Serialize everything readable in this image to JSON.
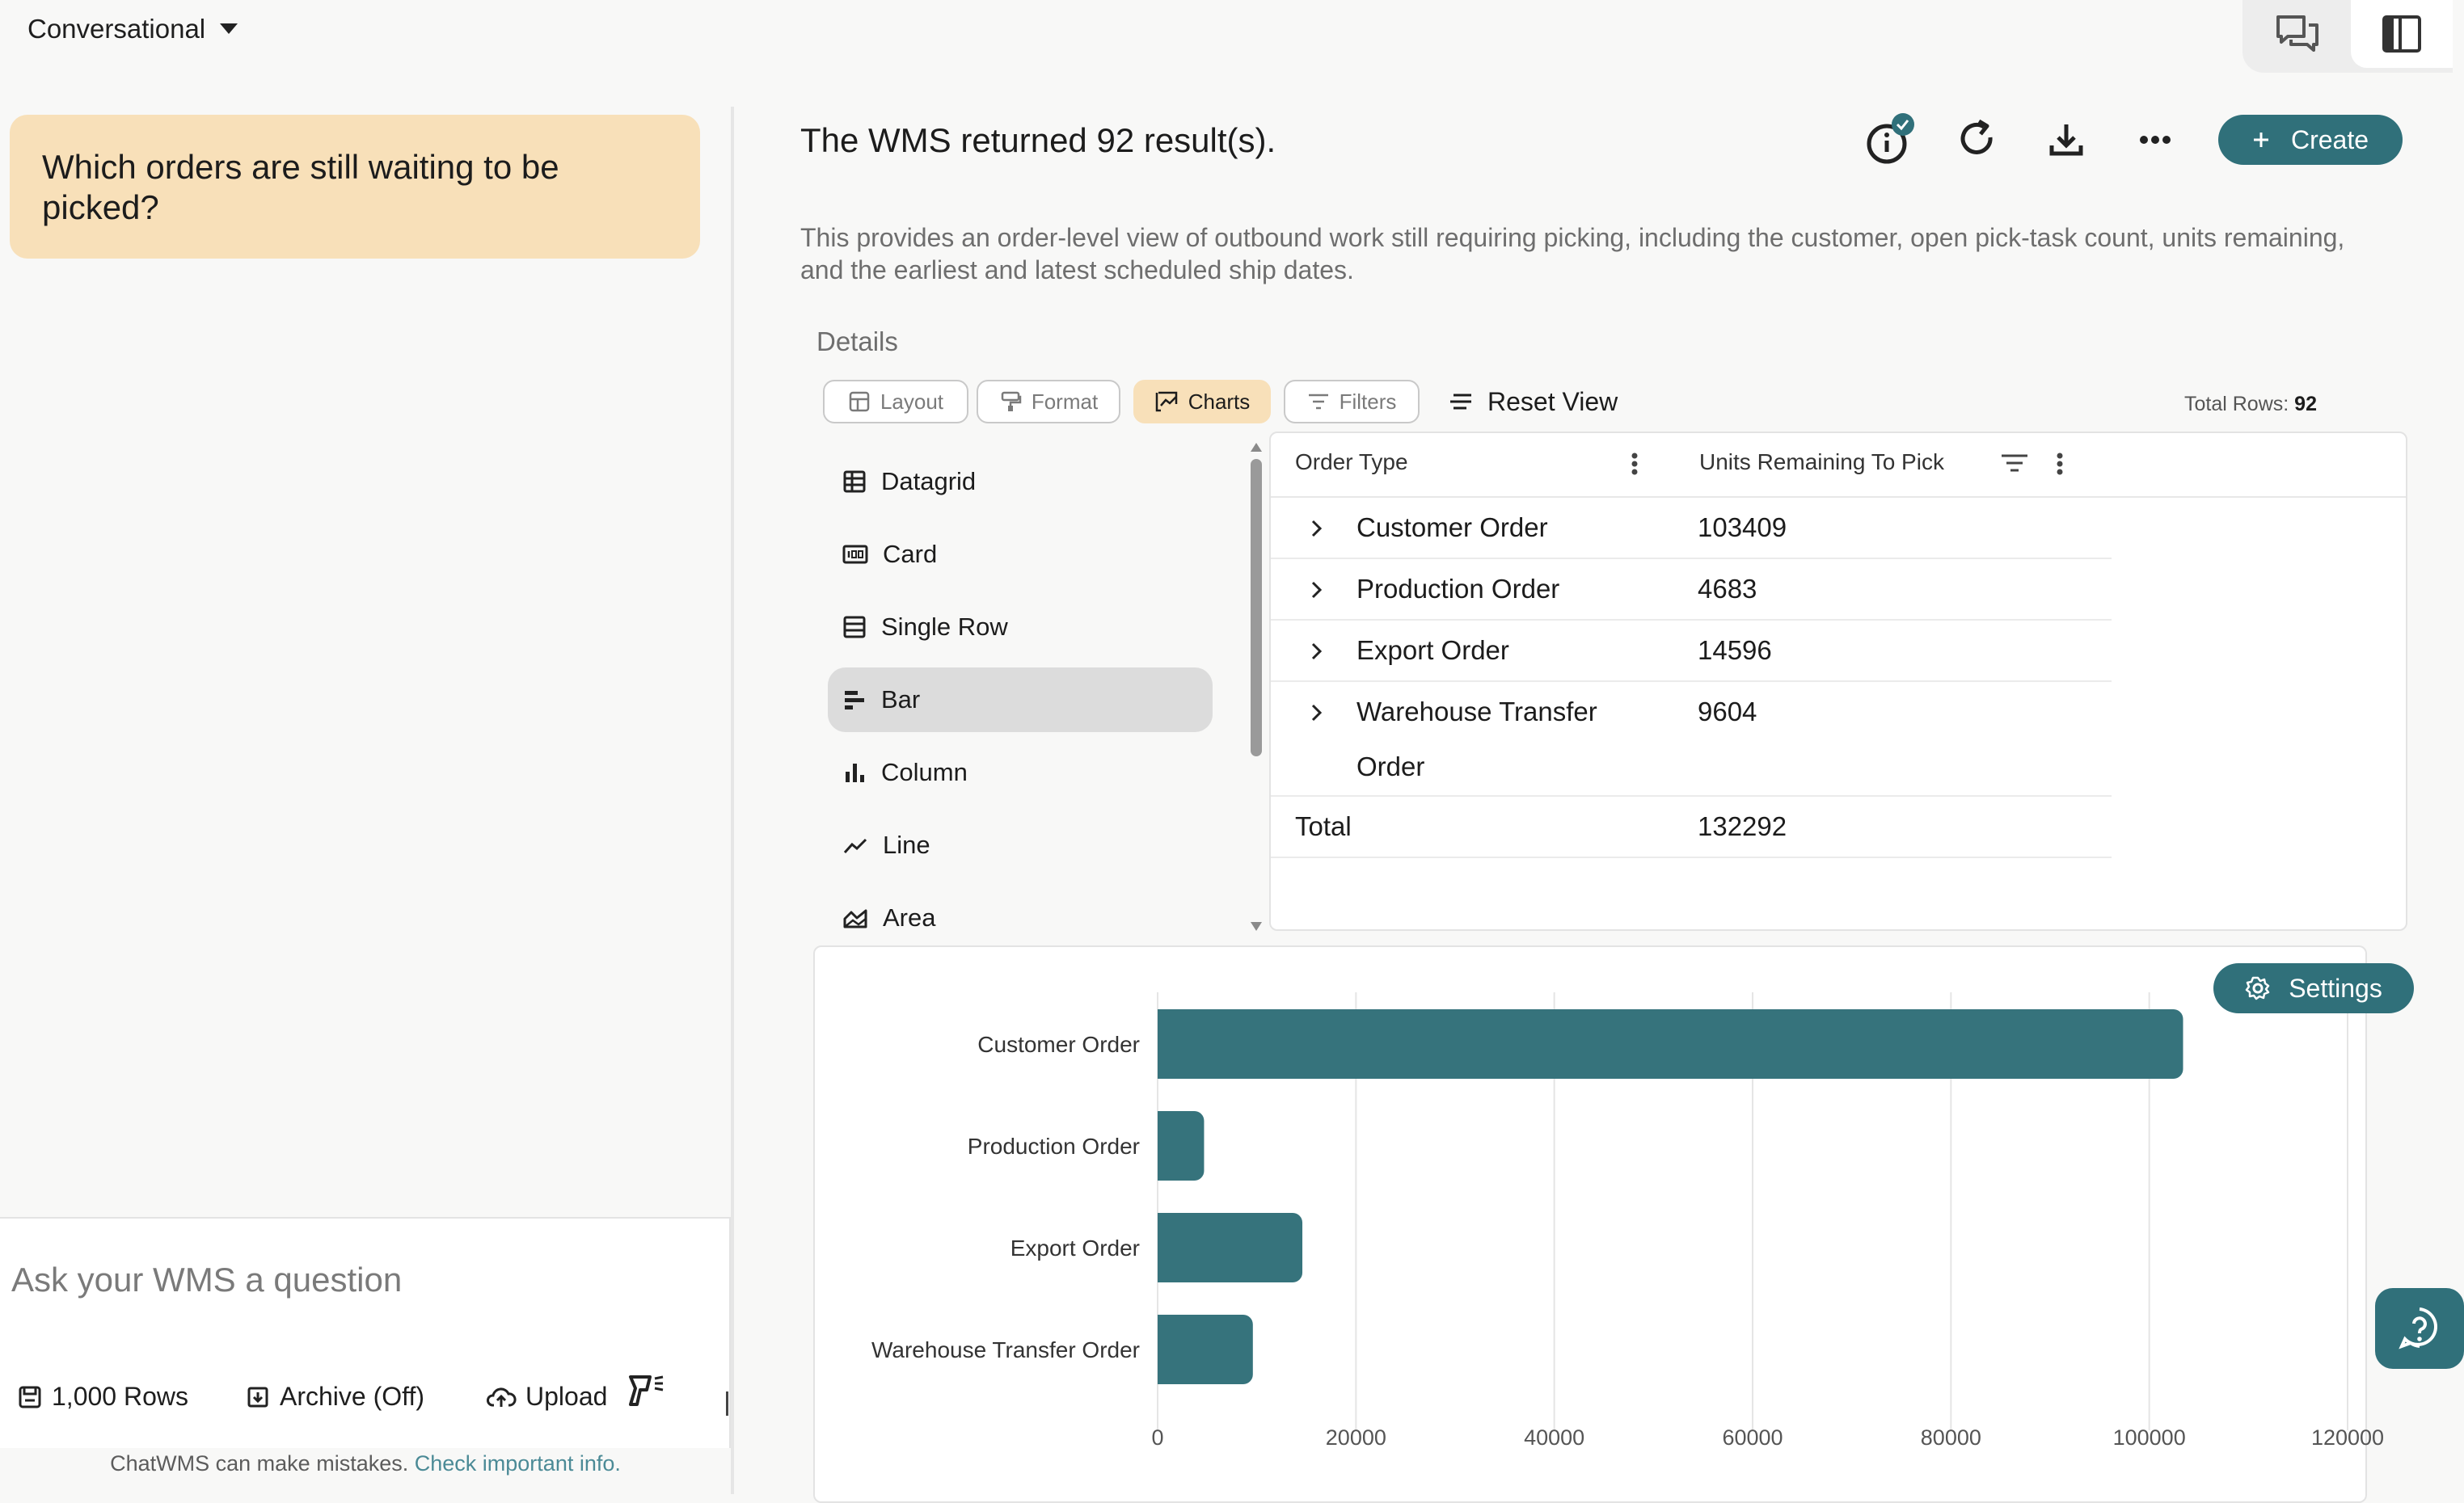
{
  "header": {
    "mode_label": "Conversational"
  },
  "conversation": {
    "user_message": "Which orders are still waiting to be picked?"
  },
  "composer": {
    "placeholder": "Ask your WMS a question",
    "rows_label": "1,000 Rows",
    "archive_label": "Archive (Off)",
    "upload_label": "Upload",
    "disclaimer_text": "ChatWMS can make mistakes.",
    "disclaimer_link": "Check important info."
  },
  "result": {
    "title": "The WMS returned 92 result(s).",
    "create_label": "Create",
    "description": "This provides an order-level view of outbound work still requiring picking, including the customer, open pick-task count, units remaining, and the earliest and latest scheduled ship dates.",
    "details_label": "Details",
    "info_badge": "✓"
  },
  "toolbar": {
    "layout": "Layout",
    "format": "Format",
    "charts": "Charts",
    "filters": "Filters",
    "reset_view": "Reset View",
    "total_rows_label": "Total Rows:",
    "total_rows_value": "92"
  },
  "view_types": [
    "Datagrid",
    "Card",
    "Single Row",
    "Bar",
    "Column",
    "Line",
    "Area"
  ],
  "selected_view": "Bar",
  "grid": {
    "columns": [
      "Order Type",
      "Units Remaining To Pick"
    ],
    "rows": [
      {
        "type_line1": "Customer Order",
        "type_line2": "",
        "units": "103409"
      },
      {
        "type_line1": "Production Order",
        "type_line2": "",
        "units": "4683"
      },
      {
        "type_line1": "Export Order",
        "type_line2": "",
        "units": "14596"
      },
      {
        "type_line1": "Warehouse Transfer",
        "type_line2": "Order",
        "units": "9604"
      }
    ],
    "total_label": "Total",
    "total_value": "132292"
  },
  "chart": {
    "settings_label": "Settings"
  },
  "chart_data": {
    "type": "bar",
    "orientation": "horizontal",
    "categories": [
      "Customer Order",
      "Production Order",
      "Export Order",
      "Warehouse Transfer Order"
    ],
    "values": [
      103409,
      4683,
      14596,
      9604
    ],
    "xlim": [
      0,
      120000
    ],
    "ticks": [
      0,
      20000,
      40000,
      60000,
      80000,
      100000,
      120000
    ],
    "color": "#36737c",
    "grid": true
  },
  "colors": {
    "accent": "#30707a",
    "bar": "#36737c",
    "user_bubble": "#f8e0b9"
  }
}
